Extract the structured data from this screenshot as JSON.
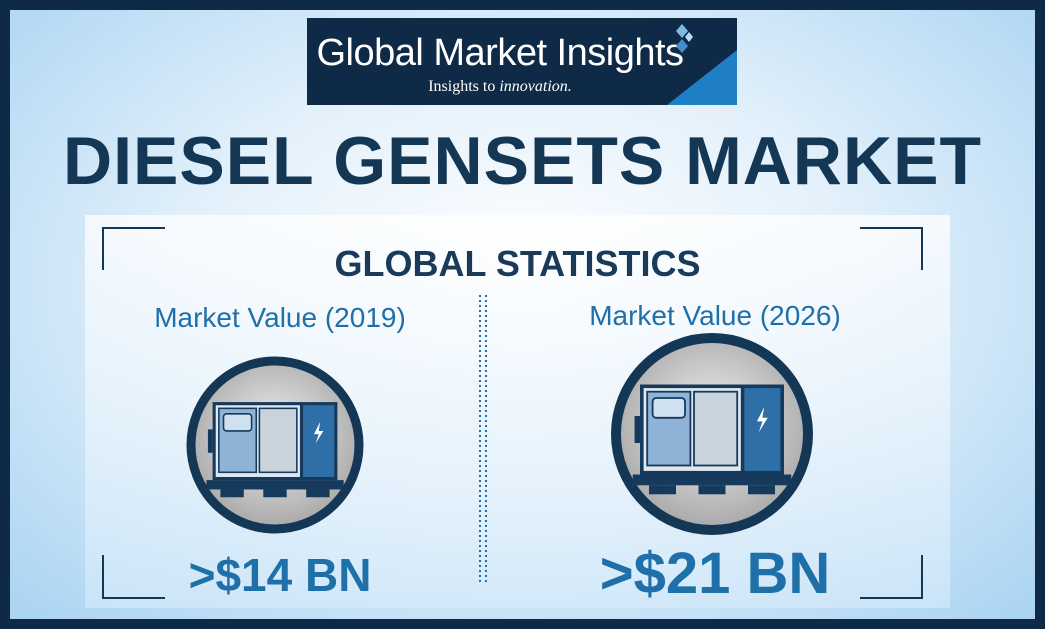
{
  "header": {
    "brand": "Global Market Insights",
    "tagline": [
      "Insights to ",
      "innovation."
    ]
  },
  "title": "DIESEL GENSETS MARKET",
  "section_title": "GLOBAL STATISTICS",
  "stats": [
    {
      "label": "Market Value (2019)",
      "value": ">$14 BN"
    },
    {
      "label": "Market Value (2026)",
      "value": ">$21 BN"
    }
  ]
}
